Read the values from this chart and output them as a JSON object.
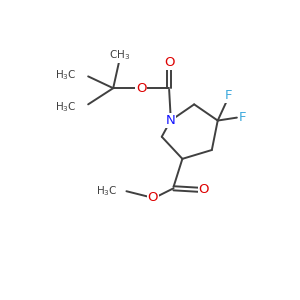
{
  "background_color": "#ffffff",
  "figsize": [
    3.0,
    3.0
  ],
  "dpi": 100,
  "atom_colors": {
    "C": "#404040",
    "N": "#1414ff",
    "O": "#dd0000",
    "F": "#40aadd",
    "H": "#404040"
  },
  "bond_color": "#404040",
  "bond_lw": 1.4,
  "font_size": 8.5,
  "font_size_small": 7.5
}
